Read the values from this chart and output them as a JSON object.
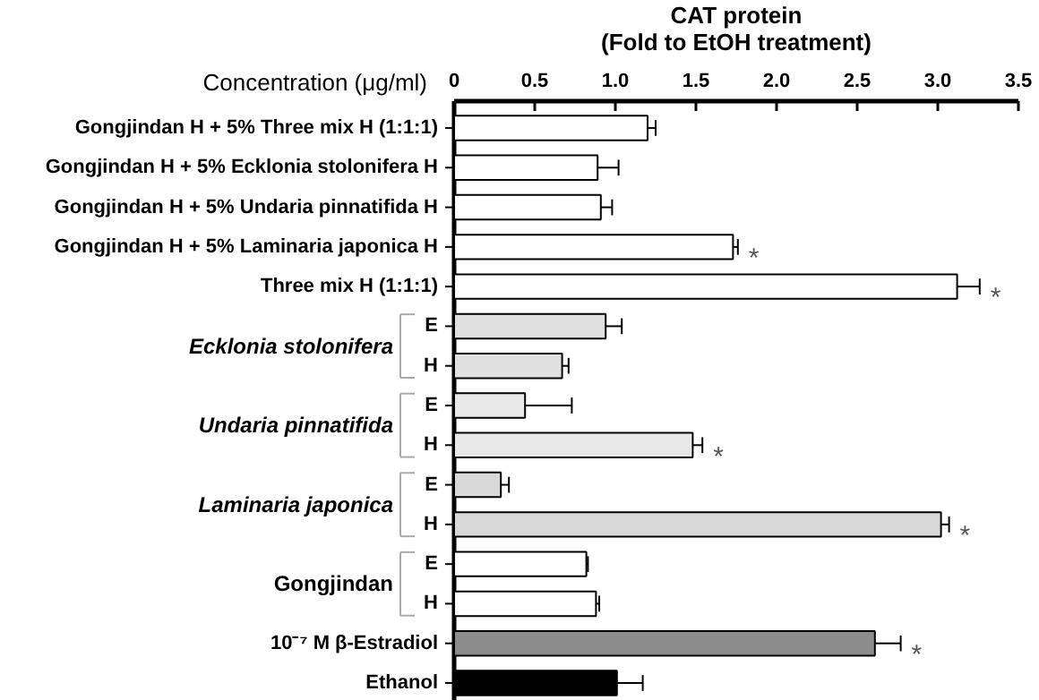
{
  "chart_data": {
    "type": "bar",
    "orientation": "horizontal",
    "xlabel": "CAT protein\n(Fold to EtOH treatment)",
    "ylabel": "Concentration (μg/ml)",
    "categories": [
      "Gongjindan H + 5% Three mix H (1:1:1)",
      "Gongjindan H + 5% Ecklonia stolonifera H",
      "Gongjindan H + 5% Undaria pinnatifida H",
      "Gongjindan H + 5% Laminaria japonica H",
      "Three mix H (1:1:1)",
      "E",
      "H",
      "E",
      "H",
      "E",
      "H",
      "E",
      "H",
      "10⁻⁷ M β-Estradiol",
      "Ethanol"
    ],
    "values": [
      1.2,
      0.89,
      0.91,
      1.73,
      3.12,
      0.94,
      0.67,
      0.44,
      1.48,
      0.29,
      3.02,
      0.82,
      0.88,
      2.61,
      1.01
    ],
    "errors": [
      0.05,
      0.13,
      0.07,
      0.03,
      0.14,
      0.1,
      0.04,
      0.29,
      0.06,
      0.05,
      0.05,
      0.01,
      0.02,
      0.16,
      0.16
    ],
    "colors": [
      "#ffffff",
      "#ffffff",
      "#ffffff",
      "#ffffff",
      "#ffffff",
      "#e0e0e0",
      "#e0e0e0",
      "#e8e8e8",
      "#e8e8e8",
      "#d8d8d8",
      "#d8d8d8",
      "#ffffff",
      "#ffffff",
      "#8c8c8c",
      "#000000"
    ],
    "value_labels": [
      null,
      null,
      null,
      "*",
      "*",
      null,
      null,
      null,
      "*",
      null,
      "*",
      null,
      null,
      "*",
      null
    ],
    "annotations": [
      "Ecklonia stolonifera",
      "Undaria pinnatifida",
      "Laminaria japonica",
      "Gongjindan"
    ],
    "xlim": [
      0,
      3.5
    ],
    "xticks": [
      0,
      0.5,
      {
        "value": 1,
        "label": "1.0"
      },
      1.5,
      {
        "value": 2,
        "label": "2.0"
      },
      2.5,
      {
        "value": 3,
        "label": "3.0"
      },
      3.5
    ]
  }
}
